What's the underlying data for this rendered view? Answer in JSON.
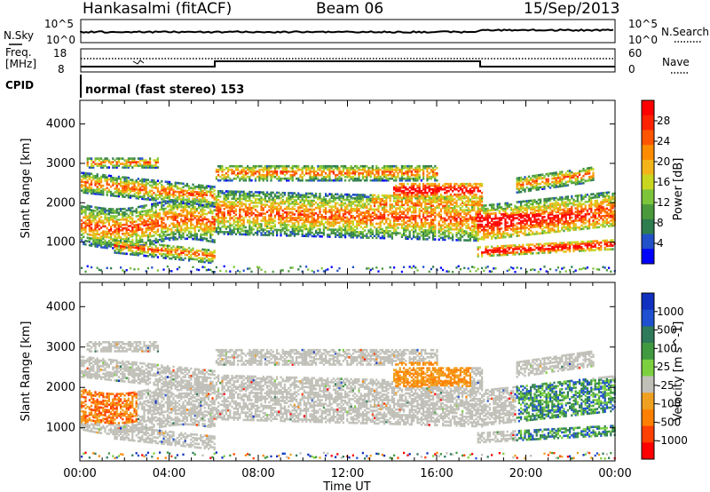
{
  "header": {
    "site": "Hankasalmi (fitACF)",
    "beam": "Beam 06",
    "date": "15/Sep/2013"
  },
  "noise_panel": {
    "left_label": "N.Sky",
    "right_label": "N.Search",
    "left_ticks": [
      "10^5",
      "10^0"
    ],
    "right_ticks": [
      "10^5",
      "10^0"
    ]
  },
  "freq_panel": {
    "left_label_1": "Freq.",
    "left_label_2": "[MHz]",
    "right_label": "Nave",
    "left_ticks": [
      "18",
      "8"
    ],
    "right_ticks": [
      "60",
      "0"
    ]
  },
  "cpid": {
    "label": "CPID",
    "text": "normal (fast stereo) 153"
  },
  "chart_data": [
    {
      "type": "heatmap",
      "name": "power",
      "ylabel": "Slant Range [km]",
      "xlabel": "Time UT",
      "ylim": [
        180,
        4600
      ],
      "yticks": [
        1000,
        2000,
        3000,
        4000
      ],
      "xlim_hours": [
        0,
        24
      ],
      "xtick_labels": [
        "00:00",
        "04:00",
        "08:00",
        "12:00",
        "16:00",
        "20:00",
        "00:00"
      ],
      "colorbar": {
        "label": "Power [dB]",
        "ticks": [
          "4",
          "8",
          "12",
          "16",
          "20",
          "24",
          "28"
        ],
        "colors": [
          "#0000ff",
          "#2250c8",
          "#2e7d4f",
          "#4a9a3c",
          "#7cc43a",
          "#c8d620",
          "#f2b418",
          "#ff8c00",
          "#ff5500",
          "#ff2200",
          "#ff0000"
        ]
      }
    },
    {
      "type": "heatmap",
      "name": "velocity",
      "ylabel": "Slant Range [km]",
      "xlabel": "Time UT",
      "ylim": [
        180,
        4600
      ],
      "yticks": [
        1000,
        2000,
        3000,
        4000
      ],
      "xlim_hours": [
        0,
        24
      ],
      "xtick_labels": [
        "00:00",
        "04:00",
        "08:00",
        "12:00",
        "16:00",
        "20:00",
        "00:00"
      ],
      "colorbar": {
        "label": "Velocity [m s^-1]",
        "ticks": [
          "1000",
          "500",
          "100",
          "25",
          "-25",
          "-100",
          "-500",
          "-1000"
        ],
        "colors": [
          "#1030c0",
          "#1e50d0",
          "#2f7a5a",
          "#3f9a40",
          "#7cd040",
          "#c0c0b8",
          "#f0a020",
          "#ff8000",
          "#ff4000",
          "#ff0000"
        ]
      }
    }
  ]
}
